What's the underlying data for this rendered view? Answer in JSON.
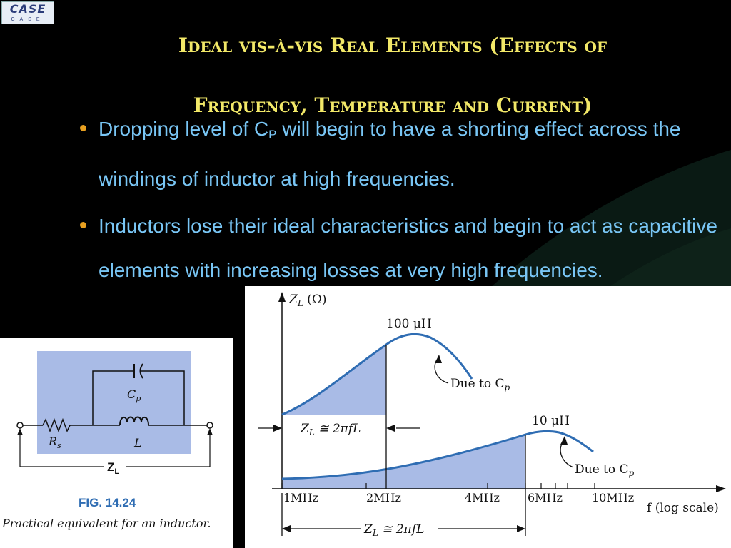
{
  "logo": {
    "main": "CASE",
    "sub": "CASE"
  },
  "slide": {
    "title_line1": "Ideal vis-à-vis Real Elements (Effects of",
    "title_line2": "Frequency, Temperature and Current)",
    "bullets": [
      {
        "pre": "Dropping level of C",
        "sub": "P",
        "post": " will begin to have a shorting effect across the windings of inductor at high frequencies."
      },
      {
        "text": "Inductors lose their ideal characteristics and begin to act as capacitive elements with increasing losses at very high frequencies."
      }
    ]
  },
  "figure_left": {
    "cp_label": "C",
    "cp_sub": "p",
    "rs_label": "R",
    "rs_sub": "s",
    "l_label": "L",
    "zl_label": "Z",
    "zl_sub": "L",
    "fig_number": "FIG. 14.24",
    "caption": "Practical equivalent for an inductor."
  },
  "figure_right": {
    "y_axis_label": "Z",
    "y_axis_sub": "L",
    "y_axis_unit": " (Ω)",
    "x_axis_label": "f (log scale)",
    "curve1_label": "100 μH",
    "curve2_label": "10 μH",
    "due_to_1": "Due to C",
    "due_to_2": "Due to C",
    "due_sub": "p",
    "formula_upper": "Z",
    "formula_lower": "Z",
    "formula_rest": " ≅ 2πfL",
    "formula_sub": "L",
    "tick_labels": [
      "1MHz",
      "2MHz",
      "4MHz",
      "6MHz",
      "10MHz"
    ]
  }
}
